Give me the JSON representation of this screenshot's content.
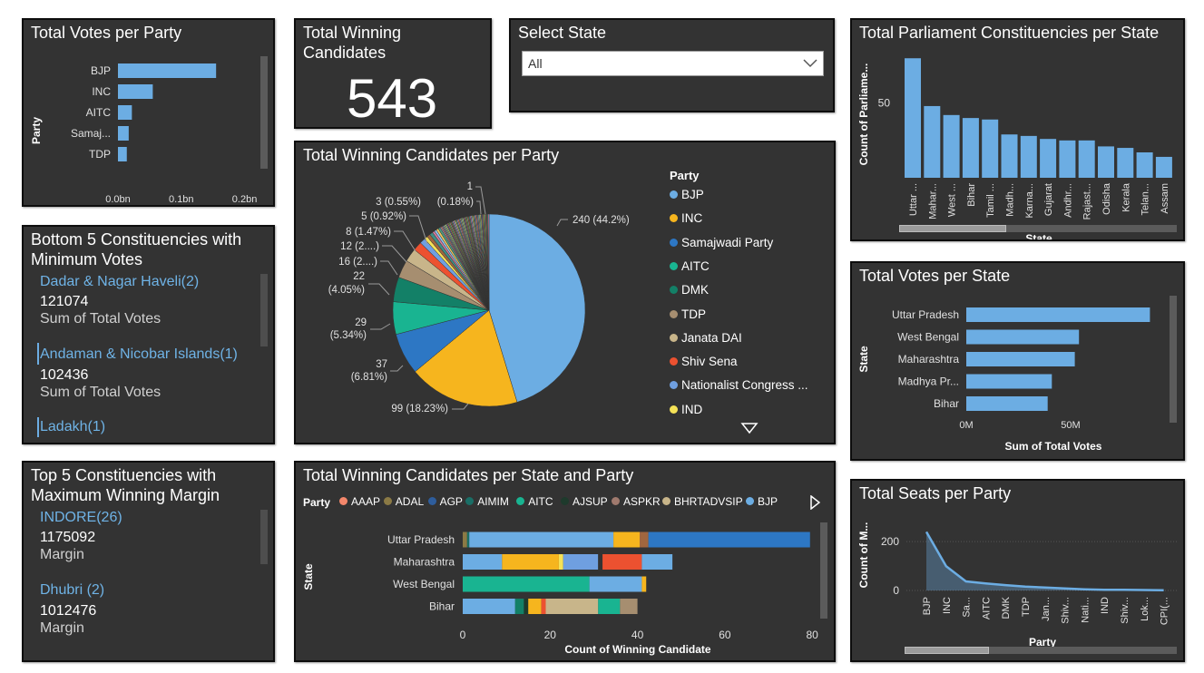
{
  "colors": {
    "panel": "#333333",
    "accent": "#6cade3",
    "bar": "#6cade3",
    "text": "#ffffff",
    "axis": "#cfcfcf",
    "link": "#6fb3e6"
  },
  "votes_party": {
    "title": "Total Votes per Party",
    "ylabel": "Party",
    "xlabel": "Sum of Total Votes",
    "chart_data": {
      "type": "bar",
      "orientation": "horizontal",
      "categories": [
        "BJP",
        "INC",
        "AITC",
        "Samaj...",
        "TDP"
      ],
      "values": [
        0.155,
        0.055,
        0.022,
        0.017,
        0.014
      ],
      "ticks": [
        "0.0bn",
        "0.1bn",
        "0.2bn"
      ],
      "tick_values": [
        0,
        0.1,
        0.2
      ],
      "xlim": [
        0,
        0.235
      ]
    }
  },
  "kpi": {
    "title": "Total Winning Candidates",
    "value": "543"
  },
  "slicer": {
    "title": "Select State",
    "value": "All"
  },
  "pc_state": {
    "title": "Total Parliament Constituencies per State",
    "ylabel": "Count of Parliame...",
    "xlabel": "State",
    "chart_data": {
      "type": "bar",
      "categories": [
        "Uttar ...",
        "Mahar...",
        "West ...",
        "Bihar",
        "Tamil ...",
        "Madh...",
        "Karna...",
        "Gujarat",
        "Andhr...",
        "Rajast...",
        "Odisha",
        "Kerala",
        "Telan...",
        "Assam"
      ],
      "values": [
        80,
        48,
        42,
        40,
        39,
        29,
        28,
        26,
        25,
        25,
        21,
        20,
        17,
        14
      ],
      "ylim": [
        0,
        85
      ],
      "ticks": [
        "50"
      ],
      "tick_values": [
        50
      ]
    }
  },
  "bottom5": {
    "title": "Bottom 5 Constituencies with Minimum Votes",
    "items": [
      {
        "name": "Dadar & Nagar Haveli(2)",
        "value": "121074",
        "label": "Sum of Total Votes"
      },
      {
        "name": "Andaman & Nicobar Islands(1)",
        "value": "102436",
        "label": "Sum of Total Votes"
      },
      {
        "name": "Ladakh(1)"
      }
    ]
  },
  "pie": {
    "title": "Total Winning Candidates per Party",
    "legend_title": "Party",
    "legend": [
      {
        "name": "BJP",
        "color": "#6cade3"
      },
      {
        "name": "INC",
        "color": "#f6b51e"
      },
      {
        "name": "Samajwadi Party",
        "color": "#2d77c4"
      },
      {
        "name": "AITC",
        "color": "#19b491"
      },
      {
        "name": "DMK",
        "color": "#138067"
      },
      {
        "name": "TDP",
        "color": "#a68e70"
      },
      {
        "name": "Janata DAI",
        "color": "#c8b58a"
      },
      {
        "name": "Shiv Sena",
        "color": "#ec5130"
      },
      {
        "name": "Nationalist Congress ...",
        "color": "#6f9fe0"
      },
      {
        "name": "IND",
        "color": "#f5e257"
      }
    ],
    "labels": [
      "240 (44.2%)",
      "99 (18.23%)",
      "37",
      "(6.81%)",
      "29",
      "(5.34%)",
      "22",
      "(4.05%)",
      "16 (2....)",
      "12 (2....)",
      "8 (1.47%)",
      "5 (0.92%)",
      "3 (0.55%)",
      "(0.18%)",
      "1"
    ],
    "chart_data": {
      "type": "pie",
      "categories": [
        "BJP",
        "INC",
        "Samajwadi Party",
        "AITC",
        "DMK",
        "TDP",
        "Janata DAI",
        "Shiv Sena",
        "Nationalist Congress ...",
        "IND"
      ],
      "values": [
        240,
        99,
        37,
        29,
        22,
        16,
        12,
        8,
        5,
        3
      ],
      "others_values": [
        3,
        3,
        2,
        2,
        2,
        2,
        1,
        1,
        1,
        1,
        1,
        1,
        1,
        1,
        1,
        1,
        1,
        1,
        1,
        1,
        1,
        1,
        1,
        1,
        1,
        1,
        1,
        1,
        1,
        1,
        1,
        1,
        1,
        1,
        1,
        1,
        1,
        1,
        1,
        1,
        1,
        1,
        1,
        1,
        1,
        1,
        1,
        1,
        1,
        1,
        1
      ]
    }
  },
  "state_votes": {
    "title": "Total Votes per State",
    "ylabel": "State",
    "xlabel": "Sum of Total Votes",
    "chart_data": {
      "type": "bar",
      "orientation": "horizontal",
      "categories": [
        "Uttar Pradesh",
        "West Bengal",
        "Maharashtra",
        "Madhya Pr...",
        "Bihar"
      ],
      "values": [
        88,
        54,
        52,
        41,
        39
      ],
      "ticks": [
        "0M",
        "50M"
      ],
      "tick_values": [
        0,
        50
      ],
      "xlim": [
        0,
        100
      ]
    }
  },
  "top5": {
    "title": "Top 5 Constituencies with Maximum Winning Margin",
    "items": [
      {
        "name": "INDORE(26)",
        "value": "1175092",
        "label": "Margin"
      },
      {
        "name": "Dhubri (2)",
        "value": "1012476",
        "label": "Margin"
      }
    ]
  },
  "stacked": {
    "title": "Total Winning Candidates per State and Party",
    "legend_title": "Party",
    "legend": [
      {
        "name": "AAAP",
        "color": "#f4876b"
      },
      {
        "name": "ADAL",
        "color": "#8b7a45"
      },
      {
        "name": "AGP",
        "color": "#2e5d9c"
      },
      {
        "name": "AIMIM",
        "color": "#1a6e66"
      },
      {
        "name": "AITC",
        "color": "#19b491"
      },
      {
        "name": "AJSUP",
        "color": "#1e3a2c"
      },
      {
        "name": "ASPKR",
        "color": "#a07a6e"
      },
      {
        "name": "BHRTADVSIP",
        "color": "#c8b58a"
      },
      {
        "name": "BJP",
        "color": "#6cade3"
      }
    ],
    "ylabel": "State",
    "xlabel": "Count of Winning Candidate",
    "chart_data": {
      "type": "bar",
      "orientation": "horizontal",
      "stacked": true,
      "categories": [
        "Uttar Pradesh",
        "Maharashtra",
        "West Bengal",
        "Bihar"
      ],
      "ticks": [
        "0",
        "20",
        "40",
        "60",
        "80"
      ],
      "tick_values": [
        0,
        20,
        40,
        60,
        80
      ],
      "xlim": [
        0,
        81
      ],
      "rows": [
        [
          {
            "v": 1,
            "c": "#8b7a45"
          },
          {
            "v": 0.5,
            "c": "#1a6e66"
          },
          {
            "v": 33,
            "c": "#6cade3"
          },
          {
            "v": 6,
            "c": "#f6b51e"
          },
          {
            "v": 2,
            "c": "#a0663f"
          },
          {
            "v": 37,
            "c": "#2d77c4"
          }
        ],
        [
          {
            "v": 9,
            "c": "#6cade3"
          },
          {
            "v": 13,
            "c": "#f6b51e"
          },
          {
            "v": 1,
            "c": "#f5e257"
          },
          {
            "v": 8,
            "c": "#6f9fe0"
          },
          {
            "v": 1,
            "c": "#333333"
          },
          {
            "v": 9,
            "c": "#ec5130"
          },
          {
            "v": 7,
            "c": "#6cade3"
          }
        ],
        [
          {
            "v": 29,
            "c": "#19b491"
          },
          {
            "v": 12,
            "c": "#6cade3"
          },
          {
            "v": 1,
            "c": "#f6b51e"
          }
        ],
        [
          {
            "v": 12,
            "c": "#6cade3"
          },
          {
            "v": 2,
            "c": "#138067"
          },
          {
            "v": 1,
            "c": "#1e3a2c"
          },
          {
            "v": 3,
            "c": "#f6b51e"
          },
          {
            "v": 1,
            "c": "#ec5130"
          },
          {
            "v": 12,
            "c": "#c8b58a"
          },
          {
            "v": 5,
            "c": "#19b491"
          },
          {
            "v": 4,
            "c": "#a68e70"
          }
        ]
      ]
    }
  },
  "seats": {
    "title": "Total Seats per Party",
    "ylabel": "Count of M...",
    "xlabel": "Party",
    "chart_data": {
      "type": "area",
      "categories": [
        "BJP",
        "INC",
        "Sa...",
        "AITC",
        "DMK",
        "TDP",
        "Jan...",
        "Shiv...",
        "Nati...",
        "IND",
        "Shiv...",
        "Lok...",
        "CPI(..."
      ],
      "values": [
        240,
        99,
        37,
        29,
        22,
        16,
        12,
        8,
        5,
        3,
        3,
        2,
        1
      ],
      "ylim": [
        0,
        260
      ],
      "ticks": [
        "0",
        "200"
      ],
      "tick_values": [
        0,
        200
      ]
    }
  }
}
